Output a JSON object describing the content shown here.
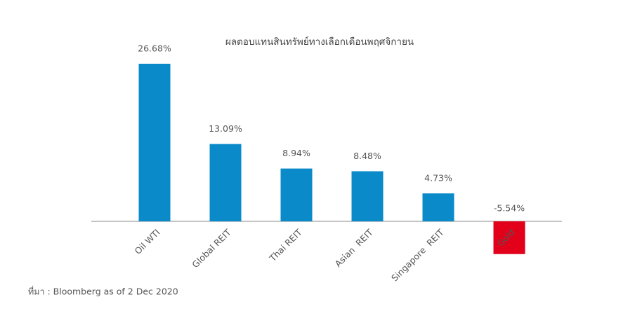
{
  "chart_data": {
    "type": "bar",
    "title": "ผลตอบแทนสินทรัพย์ทางเลือกเดือนพฤศจิกายน",
    "categories": [
      "Oil WTI",
      "Global REIT",
      "Thai REIT",
      "Asian  REIT",
      "Singapore  REIT",
      "Gold"
    ],
    "values": [
      26.68,
      13.09,
      8.94,
      8.48,
      4.73,
      -5.54
    ],
    "value_labels": [
      "26.68%",
      "13.09%",
      "8.94%",
      "8.48%",
      "4.73%",
      "-5.54%"
    ],
    "colors": [
      "#0a8ac9",
      "#0a8ac9",
      "#0a8ac9",
      "#0a8ac9",
      "#0a8ac9",
      "#e2001a"
    ],
    "source": "ที่มา : Bloomberg as of 2 Dec 2020"
  }
}
